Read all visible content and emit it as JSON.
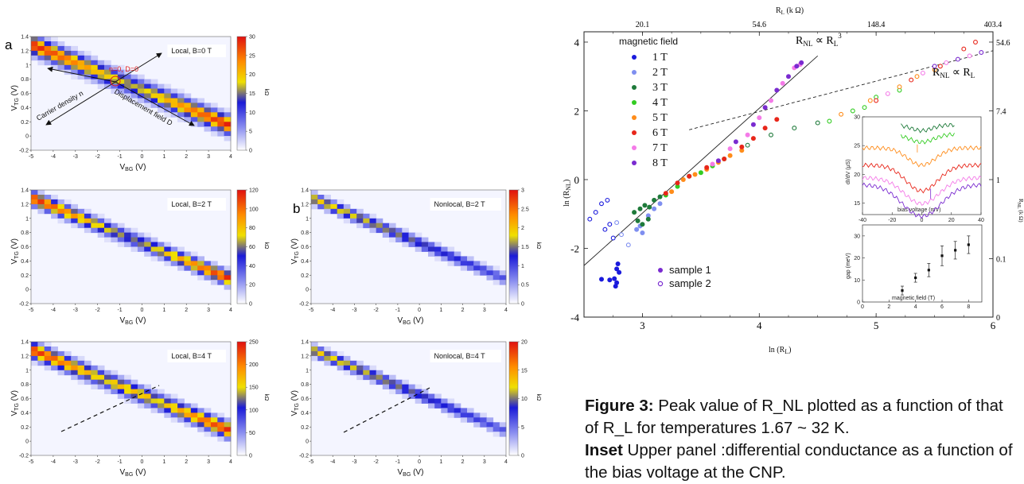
{
  "panel_labels": {
    "a": "a",
    "b": "b"
  },
  "colorbar_label": "kΩ",
  "heatmap_axes": {
    "xlabel_main": "V",
    "xlabel_sub": "BG",
    "xlabel_unit": "(V)",
    "ylabel_main": "V",
    "ylabel_sub": "TG",
    "ylabel_unit": "(V)",
    "xticks": [
      "-5",
      "-4",
      "-3",
      "-2",
      "-1",
      "0",
      "1",
      "2",
      "3",
      "4"
    ],
    "yticks": [
      "1.4",
      "1.2",
      "1",
      "0.8",
      "0.6",
      "0.4",
      "0.2",
      "0",
      "-0.2"
    ]
  },
  "annotations": {
    "neutral_point": "n=0, D=0",
    "carrier_density": "Carrier density n",
    "displacement_field": "Displacement field D"
  },
  "caption": {
    "fig_label": "Figure 3:",
    "fig_text": " Peak value of R_NL plotted as a function of that of R_L for temperatures 1.67 ~ 32 K.",
    "inset_label": "Inset",
    "inset_text": " Upper panel :differential conductance as a function of the bias voltage at the CNP."
  },
  "chart_data": [
    {
      "type": "heatmap",
      "id": "a1",
      "title": "Local, B=0 T",
      "cbar_ticks": [
        "30",
        "25",
        "20",
        "15",
        "10",
        "5",
        "0"
      ],
      "xlim": [
        -5,
        4
      ],
      "ylim": [
        -0.2,
        1.4
      ],
      "ridge": {
        "from": [
          -5,
          1.29
        ],
        "to": [
          4,
          0.14
        ]
      }
    },
    {
      "type": "heatmap",
      "id": "a2",
      "title": "Local, B=2 T",
      "cbar_ticks": [
        "120",
        "100",
        "80",
        "60",
        "40",
        "20",
        "0"
      ],
      "xlim": [
        -5,
        4
      ],
      "ylim": [
        -0.2,
        1.4
      ],
      "ridge": {
        "from": [
          -5,
          1.29
        ],
        "to": [
          4,
          0.14
        ]
      }
    },
    {
      "type": "heatmap",
      "id": "a3",
      "title": "Local, B=4 T",
      "cbar_ticks": [
        "250",
        "200",
        "150",
        "100",
        "50",
        "0"
      ],
      "xlim": [
        -5,
        4
      ],
      "ylim": [
        -0.2,
        1.4
      ],
      "ridge": {
        "from": [
          -5,
          1.29
        ],
        "to": [
          4,
          0.14
        ]
      }
    },
    {
      "type": "heatmap",
      "id": "b1",
      "title": "Nonlocal, B=2 T",
      "cbar_ticks": [
        "3",
        "2.5",
        "2",
        "1.5",
        "1",
        "0.5",
        "0"
      ],
      "xlim": [
        -5,
        4
      ],
      "ylim": [
        -0.2,
        1.4
      ],
      "ridge": {
        "from": [
          -5,
          1.29
        ],
        "to": [
          4,
          0.14
        ]
      }
    },
    {
      "type": "heatmap",
      "id": "b2",
      "title": "Nonlocal, B=4 T",
      "cbar_ticks": [
        "20",
        "15",
        "10",
        "5",
        "0"
      ],
      "xlim": [
        -5,
        4
      ],
      "ylim": [
        -0.2,
        1.4
      ],
      "ridge": {
        "from": [
          -5,
          1.29
        ],
        "to": [
          4,
          0.14
        ]
      }
    },
    {
      "type": "scatter",
      "id": "main",
      "xlabel": "ln (R",
      "xlabel_sub": "L",
      "xlabel_end": ")",
      "ylabel": "ln (R",
      "ylabel_sub": "NL",
      "ylabel_end": ")",
      "top_axis_label": "R",
      "top_axis_sub": "L",
      "top_axis_unit": " (k Ω)",
      "right_axis_label": "R",
      "right_axis_sub": "NL",
      "right_axis_unit": " (k Ω)",
      "xlim": [
        2.5,
        6
      ],
      "ylim": [
        -4,
        4.3
      ],
      "xticks": [
        "3",
        "4",
        "5",
        "6"
      ],
      "yticks": [
        "4",
        "2",
        "0",
        "-2",
        "-4"
      ],
      "top_ticks": [
        "20.1",
        "54.6",
        "148.4",
        "403.4"
      ],
      "right_ticks": [
        "54.6",
        "7.4",
        "1",
        "0.1",
        "0"
      ],
      "legend_title": "magnetic field",
      "legend": [
        {
          "label": "1 T",
          "color": "#1a1adc"
        },
        {
          "label": "2 T",
          "color": "#7f8ff0"
        },
        {
          "label": "3 T",
          "color": "#1e7a3a"
        },
        {
          "label": "4 T",
          "color": "#33cc22"
        },
        {
          "label": "5 T",
          "color": "#ff8c1a"
        },
        {
          "label": "6 T",
          "color": "#e8261a"
        },
        {
          "label": "7 T",
          "color": "#f47be8"
        },
        {
          "label": "8 T",
          "color": "#7a2bd0"
        }
      ],
      "sample_legend": [
        "sample 1",
        "sample 2"
      ],
      "fit_lines": [
        {
          "label": "R",
          "label_sub": "NL",
          "prop": " ∝ R",
          "label_sub2": "L",
          "label_sup": "3",
          "from": [
            2.5,
            -2.5
          ],
          "to": [
            4.5,
            3.6
          ],
          "style": "solid"
        },
        {
          "label": "R",
          "label_sub": "NL",
          "prop": " ∝ R",
          "label_sub2": "L",
          "label_sup": "",
          "from": [
            3.4,
            1.45
          ],
          "to": [
            6,
            3.75
          ],
          "style": "dashed"
        }
      ],
      "sample1": [
        {
          "field": 1,
          "points": [
            [
              2.65,
              -2.9
            ],
            [
              2.72,
              -2.92
            ],
            [
              2.76,
              -2.88
            ],
            [
              2.78,
              -2.6
            ],
            [
              2.79,
              -2.45
            ],
            [
              2.8,
              -2.7
            ],
            [
              2.78,
              -3.0
            ],
            [
              2.77,
              -3.1
            ]
          ]
        },
        {
          "field": 2,
          "points": [
            [
              2.95,
              -1.45
            ],
            [
              3.0,
              -1.55
            ],
            [
              2.98,
              -1.35
            ],
            [
              3.05,
              -1.05
            ],
            [
              3.1,
              -0.85
            ],
            [
              3.15,
              -0.7
            ]
          ]
        },
        {
          "field": 3,
          "points": [
            [
              2.93,
              -0.95
            ],
            [
              2.96,
              -1.2
            ],
            [
              3.0,
              -1.3
            ],
            [
              3.05,
              -1.15
            ],
            [
              3.06,
              -0.8
            ],
            [
              3.02,
              -0.75
            ],
            [
              2.98,
              -0.85
            ],
            [
              3.1,
              -0.6
            ],
            [
              3.15,
              -0.5
            ]
          ]
        },
        {
          "field": 4,
          "points": [
            [
              3.2,
              -0.45
            ],
            [
              3.3,
              -0.2
            ],
            [
              3.4,
              0.1
            ],
            [
              3.5,
              0.2
            ],
            [
              3.6,
              0.4
            ],
            [
              3.7,
              0.6
            ]
          ]
        },
        {
          "field": 5,
          "points": [
            [
              3.25,
              -0.35
            ],
            [
              3.35,
              0.0
            ],
            [
              3.45,
              0.15
            ],
            [
              3.55,
              0.3
            ],
            [
              3.65,
              0.5
            ],
            [
              3.75,
              0.7
            ],
            [
              3.85,
              0.85
            ]
          ]
        },
        {
          "field": 6,
          "points": [
            [
              3.2,
              -0.4
            ],
            [
              3.3,
              -0.1
            ],
            [
              3.4,
              0.1
            ],
            [
              3.55,
              0.35
            ],
            [
              3.7,
              0.6
            ],
            [
              3.85,
              0.95
            ],
            [
              3.95,
              1.2
            ],
            [
              4.05,
              1.5
            ],
            [
              4.15,
              1.75
            ]
          ]
        },
        {
          "field": 7,
          "points": [
            [
              3.6,
              0.45
            ],
            [
              3.75,
              0.9
            ],
            [
              3.9,
              1.3
            ],
            [
              4.0,
              1.8
            ],
            [
              4.1,
              2.3
            ],
            [
              4.2,
              2.8
            ],
            [
              4.3,
              3.25
            ],
            [
              4.35,
              3.35
            ]
          ]
        },
        {
          "field": 8,
          "points": [
            [
              3.65,
              0.55
            ],
            [
              3.8,
              1.1
            ],
            [
              3.95,
              1.6
            ],
            [
              4.05,
              2.1
            ],
            [
              4.15,
              2.6
            ],
            [
              4.25,
              3.0
            ],
            [
              4.32,
              3.3
            ],
            [
              4.36,
              3.4
            ]
          ]
        }
      ],
      "sample2": [
        {
          "field": 1,
          "points": [
            [
              2.55,
              -1.15
            ],
            [
              2.6,
              -0.95
            ],
            [
              2.65,
              -0.7
            ],
            [
              2.7,
              -0.6
            ],
            [
              2.72,
              -1.3
            ],
            [
              2.68,
              -1.45
            ],
            [
              2.75,
              -1.7
            ]
          ]
        },
        {
          "field": 2,
          "points": [
            [
              2.78,
              -1.25
            ],
            [
              2.82,
              -1.6
            ],
            [
              2.88,
              -1.9
            ]
          ]
        },
        {
          "field": 3,
          "points": [
            [
              3.9,
              1.0
            ],
            [
              4.1,
              1.3
            ],
            [
              4.3,
              1.5
            ],
            [
              4.5,
              1.65
            ]
          ]
        },
        {
          "field": 4,
          "points": [
            [
              4.6,
              1.7
            ],
            [
              4.8,
              2.0
            ],
            [
              4.9,
              2.1
            ],
            [
              5.0,
              2.4
            ],
            [
              5.2,
              2.6
            ]
          ]
        },
        {
          "field": 5,
          "points": [
            [
              4.7,
              1.9
            ],
            [
              4.95,
              2.3
            ],
            [
              5.2,
              2.7
            ],
            [
              5.35,
              3.0
            ],
            [
              5.5,
              3.2
            ]
          ]
        },
        {
          "field": 6,
          "points": [
            [
              5.0,
              2.3
            ],
            [
              5.3,
              2.9
            ],
            [
              5.55,
              3.3
            ],
            [
              5.75,
              3.8
            ],
            [
              5.85,
              4.0
            ]
          ]
        },
        {
          "field": 7,
          "points": [
            [
              5.1,
              2.5
            ],
            [
              5.4,
              3.1
            ],
            [
              5.6,
              3.4
            ],
            [
              5.8,
              3.6
            ]
          ]
        },
        {
          "field": 8,
          "points": [
            [
              5.5,
              3.3
            ],
            [
              5.7,
              3.5
            ],
            [
              5.9,
              3.7
            ]
          ]
        }
      ]
    },
    {
      "type": "line",
      "id": "inset_dIdV",
      "xlabel": "bias voltage (mV)",
      "ylabel": "dI/dV (μS)",
      "xlim": [
        -40,
        40
      ],
      "ylim": [
        13,
        30
      ],
      "xticks": [
        "-40",
        "-20",
        "0",
        "20",
        "40"
      ],
      "yticks": [
        "30",
        "25",
        "20",
        "15"
      ],
      "series_colors": [
        "#1e7a3a",
        "#33cc22",
        "#ff8c1a",
        "#e8261a",
        "#f47be8",
        "#7a2bd0"
      ]
    },
    {
      "type": "scatter",
      "id": "inset_gap",
      "xlabel": "magnetic field (T)",
      "ylabel": "gap (meV)",
      "xlim": [
        0,
        9
      ],
      "ylim": [
        0,
        35
      ],
      "xticks": [
        "0",
        "2",
        "4",
        "6",
        "8"
      ],
      "yticks": [
        "30",
        "20",
        "10",
        "0"
      ],
      "x": [
        3,
        4,
        5,
        6,
        7,
        8
      ],
      "y": [
        5.2,
        11,
        14.5,
        21,
        23.5,
        26
      ],
      "err": [
        2,
        2,
        3,
        4.5,
        4,
        4
      ]
    }
  ]
}
